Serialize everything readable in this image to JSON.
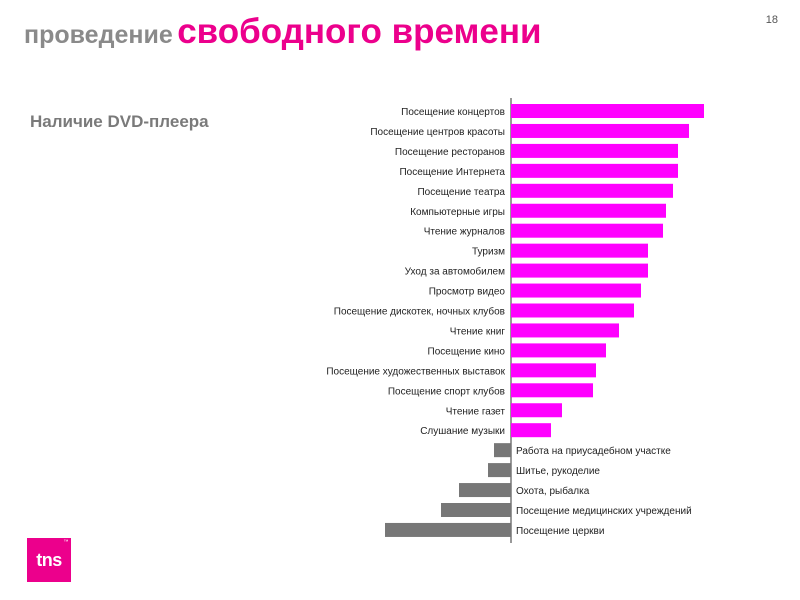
{
  "slide": {
    "title_part1": "проведение",
    "title_part2": "свободного времени",
    "page_number": "18",
    "subtitle": "Наличие DVD-плеера",
    "logo_text": "tns"
  },
  "colors": {
    "title_pink": "#ec008c",
    "positive_bar": "#ff00ff",
    "negative_bar": "#777777"
  },
  "chart_data": {
    "type": "bar",
    "orientation": "horizontal",
    "title": "Наличие DVD-плеера",
    "xlabel": "",
    "ylabel": "",
    "grid": false,
    "legend": false,
    "xlim": [
      -128,
      200
    ],
    "categories": [
      "Посещение концертов",
      "Посещение центров красоты",
      "Посещение ресторанов",
      "Посещение Интернета",
      "Посещение театра",
      "Компьютерные игры",
      "Чтение журналов",
      "Туризм",
      "Уход за автомобилем",
      "Просмотр видео",
      "Посещение дискотек, ночных клубов",
      "Чтение книг",
      "Посещение кино",
      "Посещение художественных выставок",
      "Посещение спорт клубов",
      "Чтение газет",
      "Слушание музыки",
      "Работа на приусадебном участке",
      "Шитье, рукоделие",
      "Охота, рыбалка",
      "Посещение медицинских учреждений",
      "Посещение церкви"
    ],
    "values": [
      193,
      178,
      167,
      167,
      162,
      155,
      152,
      137,
      137,
      130,
      123,
      108,
      95,
      85,
      82,
      51,
      40,
      -17,
      -23,
      -52,
      -70,
      -126
    ]
  }
}
